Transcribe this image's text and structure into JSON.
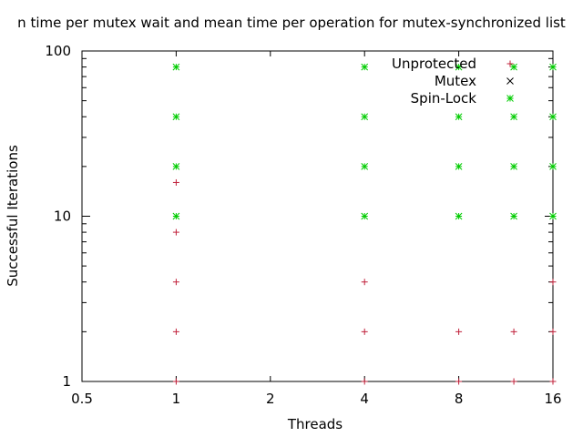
{
  "chart_data": {
    "type": "scatter",
    "title": "n time per mutex wait and mean time per operation for mutex-synchronized list",
    "xlabel": "Threads",
    "ylabel": "Successful Iterations",
    "xscale": "log2",
    "yscale": "log10",
    "xlim": [
      0.5,
      16
    ],
    "ylim": [
      1,
      100
    ],
    "x_ticks": [
      0.5,
      1,
      2,
      4,
      8,
      16
    ],
    "x_tick_labels": [
      "0.5",
      "1",
      "2",
      "4",
      "8",
      "16"
    ],
    "y_ticks": [
      1,
      10,
      100
    ],
    "y_tick_labels": [
      "1",
      "10",
      "100"
    ],
    "grid": false,
    "legend_position": "top-right",
    "series": [
      {
        "name": "Unprotected",
        "color": "#c0203a",
        "marker": "plus",
        "points": [
          [
            1,
            1
          ],
          [
            1,
            2
          ],
          [
            1,
            4
          ],
          [
            1,
            8
          ],
          [
            1,
            16
          ],
          [
            4,
            1
          ],
          [
            4,
            2
          ],
          [
            4,
            4
          ],
          [
            8,
            1
          ],
          [
            8,
            2
          ],
          [
            12,
            1
          ],
          [
            12,
            2
          ],
          [
            16,
            1
          ],
          [
            16,
            2
          ],
          [
            16,
            4
          ]
        ]
      },
      {
        "name": "Mutex",
        "color": "#000000",
        "marker": "cross",
        "points": []
      },
      {
        "name": "Spin-Lock",
        "color": "#00cc00",
        "marker": "star",
        "points": [
          [
            1,
            10
          ],
          [
            1,
            20
          ],
          [
            1,
            40
          ],
          [
            1,
            80
          ],
          [
            4,
            10
          ],
          [
            4,
            20
          ],
          [
            4,
            40
          ],
          [
            4,
            80
          ],
          [
            8,
            10
          ],
          [
            8,
            20
          ],
          [
            8,
            40
          ],
          [
            8,
            80
          ],
          [
            12,
            10
          ],
          [
            12,
            20
          ],
          [
            12,
            40
          ],
          [
            12,
            80
          ],
          [
            16,
            10
          ],
          [
            16,
            20
          ],
          [
            16,
            40
          ],
          [
            16,
            80
          ]
        ]
      }
    ]
  }
}
